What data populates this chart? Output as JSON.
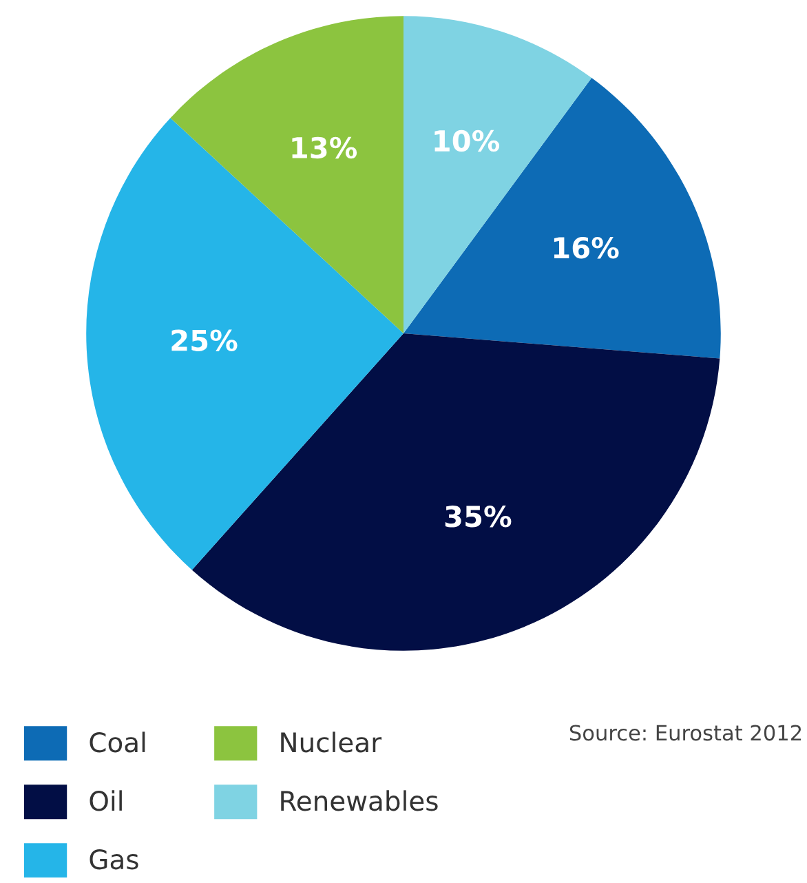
{
  "chart_data": {
    "type": "pie",
    "categories": [
      "Coal",
      "Oil",
      "Gas",
      "Nuclear",
      "Renewables"
    ],
    "values": [
      16,
      35,
      25,
      13,
      10
    ],
    "colors": [
      "#0d6bb5",
      "#020e45",
      "#25b5e8",
      "#8cc43f",
      "#7fd3e3"
    ],
    "value_labels": [
      "16%",
      "35%",
      "25%",
      "13%",
      "10%"
    ],
    "legend": "bottom left",
    "annotations": [
      "Source: Eurostat 2012"
    ]
  }
}
